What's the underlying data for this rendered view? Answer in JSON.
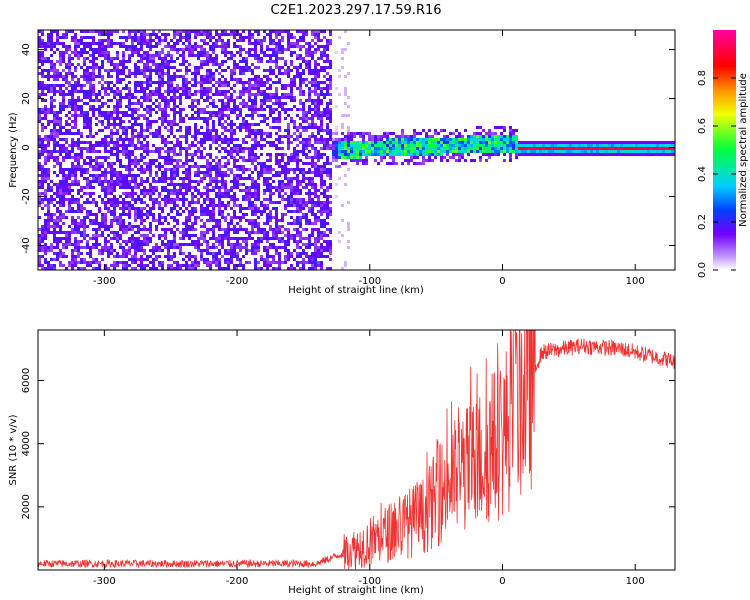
{
  "title": "C2E1.2023.297.17.59.R16",
  "chart_data": [
    {
      "type": "heatmap",
      "xlabel": "Height of straight line (km)",
      "ylabel": "Frequency (Hz)",
      "xlim": [
        -350,
        130
      ],
      "ylim": [
        -50,
        48
      ],
      "x_ticks": [
        -300,
        -200,
        -100,
        0,
        100
      ],
      "y_ticks": [
        -40,
        -20,
        0,
        20,
        40
      ],
      "colorbar": {
        "label": "Normalized spectral amplitude",
        "range": [
          0,
          1
        ],
        "ticks": [
          "0.0",
          "0.2",
          "0.4",
          "0.6",
          "0.8"
        ],
        "colors": [
          "#ffffff",
          "#c8a0ff",
          "#7000ff",
          "#0040ff",
          "#00d0ff",
          "#00ff40",
          "#f0ff00",
          "#ff9000",
          "#ff0000",
          "#ff00a0"
        ]
      },
      "regions": [
        {
          "x": [
            -350,
            -130
          ],
          "description": "broadband noise",
          "amplitude": 0.2
        },
        {
          "x": [
            -130,
            10
          ],
          "center_hz": 1,
          "width_hz": 6,
          "amplitude": 0.5
        },
        {
          "x": [
            10,
            130
          ],
          "center_hz": 0,
          "width_hz": 2,
          "amplitude": 0.95
        }
      ]
    },
    {
      "type": "line",
      "xlabel": "Height of straight line (km)",
      "ylabel": "SNR (10 * v/v)",
      "xlim": [
        -350,
        130
      ],
      "ylim": [
        0,
        7600
      ],
      "x_ticks": [
        -300,
        -200,
        -100,
        0,
        100
      ],
      "y_ticks": [
        2000,
        4000,
        6000
      ],
      "color": "#ee3333",
      "envelope": [
        {
          "x": -350,
          "y": 200
        },
        {
          "x": -200,
          "y": 200
        },
        {
          "x": -140,
          "y": 200
        },
        {
          "x": -110,
          "y": 700
        },
        {
          "x": -90,
          "y": 1100
        },
        {
          "x": -60,
          "y": 1700
        },
        {
          "x": -40,
          "y": 2800
        },
        {
          "x": -20,
          "y": 3400
        },
        {
          "x": 0,
          "y": 4200
        },
        {
          "x": 15,
          "y": 5600
        },
        {
          "x": 30,
          "y": 6900
        },
        {
          "x": 60,
          "y": 7100
        },
        {
          "x": 90,
          "y": 7000
        },
        {
          "x": 130,
          "y": 6600
        }
      ]
    }
  ]
}
